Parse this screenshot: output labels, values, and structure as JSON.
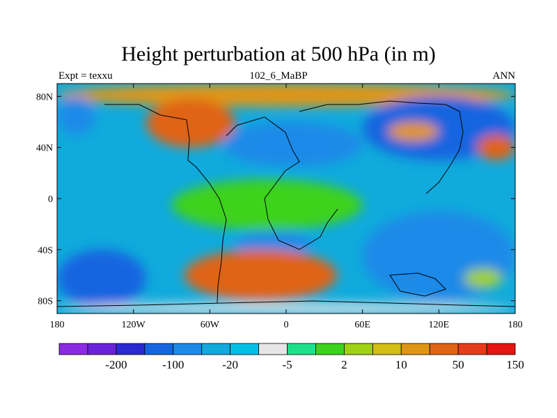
{
  "chart_data": {
    "type": "heatmap",
    "title": "Height perturbation at 500 hPa (in m)",
    "left_label": "Expt = texxu",
    "center_label": "102_6_MaBP",
    "right_label": "ANN",
    "x_ticks": [
      {
        "value": -180,
        "label": "180"
      },
      {
        "value": -120,
        "label": "120W"
      },
      {
        "value": -60,
        "label": "60W"
      },
      {
        "value": 0,
        "label": "0"
      },
      {
        "value": 60,
        "label": "60E"
      },
      {
        "value": 120,
        "label": "120E"
      },
      {
        "value": 180,
        "label": "180"
      }
    ],
    "y_ticks": [
      {
        "value": 80,
        "label": "80N"
      },
      {
        "value": 40,
        "label": "40N"
      },
      {
        "value": 0,
        "label": "0"
      },
      {
        "value": -40,
        "label": "40S"
      },
      {
        "value": -80,
        "label": "80S"
      }
    ],
    "xlim": [
      -180,
      180
    ],
    "ylim": [
      -90,
      90
    ],
    "colorbar": {
      "colors": [
        "#8a2be2",
        "#6a22d8",
        "#2a2ad0",
        "#1565e0",
        "#1e8ae8",
        "#10aadc",
        "#00c0e6",
        "#e6e6e6",
        "#1ee08c",
        "#3cd21e",
        "#a0d214",
        "#d2be14",
        "#e09614",
        "#e06414",
        "#e63c1e",
        "#e61414"
      ],
      "labels": [
        {
          "after_index": 1,
          "text": "-200"
        },
        {
          "after_index": 3,
          "text": "-100"
        },
        {
          "after_index": 5,
          "text": "-20"
        },
        {
          "after_index": 7,
          "text": "-5"
        },
        {
          "after_index": 9,
          "text": "2"
        },
        {
          "after_index": 11,
          "text": "10"
        },
        {
          "after_index": 13,
          "text": "50"
        },
        {
          "after_index": 15,
          "text": "150"
        }
      ]
    },
    "field_regions": [
      {
        "name": "arctic-band-yellow",
        "lon": [
          -180,
          180
        ],
        "lat": [
          72,
          90
        ],
        "level": 12
      },
      {
        "name": "nw-atlantic-blue",
        "lon": [
          -180,
          -150
        ],
        "lat": [
          50,
          80
        ],
        "level": 4
      },
      {
        "name": "north-america-orange",
        "lon": [
          -110,
          -40
        ],
        "lat": [
          40,
          78
        ],
        "level": 13
      },
      {
        "name": "north-atlantic-blue",
        "lon": [
          -50,
          60
        ],
        "lat": [
          25,
          60
        ],
        "level": 4
      },
      {
        "name": "siberia-blue",
        "lon": [
          60,
          180
        ],
        "lat": [
          30,
          80
        ],
        "level": 3
      },
      {
        "name": "central-asia-yellow",
        "lon": [
          80,
          120
        ],
        "lat": [
          45,
          60
        ],
        "level": 12
      },
      {
        "name": "east-pacific-orange",
        "lon": [
          150,
          180
        ],
        "lat": [
          30,
          50
        ],
        "level": 13
      },
      {
        "name": "tropics-green",
        "lon": [
          -90,
          60
        ],
        "lat": [
          -25,
          15
        ],
        "level": 9
      },
      {
        "name": "south-atlantic-blue",
        "lon": [
          -40,
          20
        ],
        "lat": [
          -45,
          -25
        ],
        "level": 4
      },
      {
        "name": "south-pacific-blue",
        "lon": [
          -180,
          -110
        ],
        "lat": [
          -85,
          -40
        ],
        "level": 3
      },
      {
        "name": "southern-ocean-orange",
        "lon": [
          -80,
          40
        ],
        "lat": [
          -80,
          -40
        ],
        "level": 13
      },
      {
        "name": "indian-ocean-blue",
        "lon": [
          60,
          180
        ],
        "lat": [
          -80,
          -10
        ],
        "level": 4
      },
      {
        "name": "australia-green",
        "lon": [
          140,
          170
        ],
        "lat": [
          -70,
          -55
        ],
        "level": 10
      },
      {
        "name": "antarctic-band-white",
        "lon": [
          -180,
          180
        ],
        "lat": [
          -90,
          -82
        ],
        "level": 7
      }
    ]
  }
}
